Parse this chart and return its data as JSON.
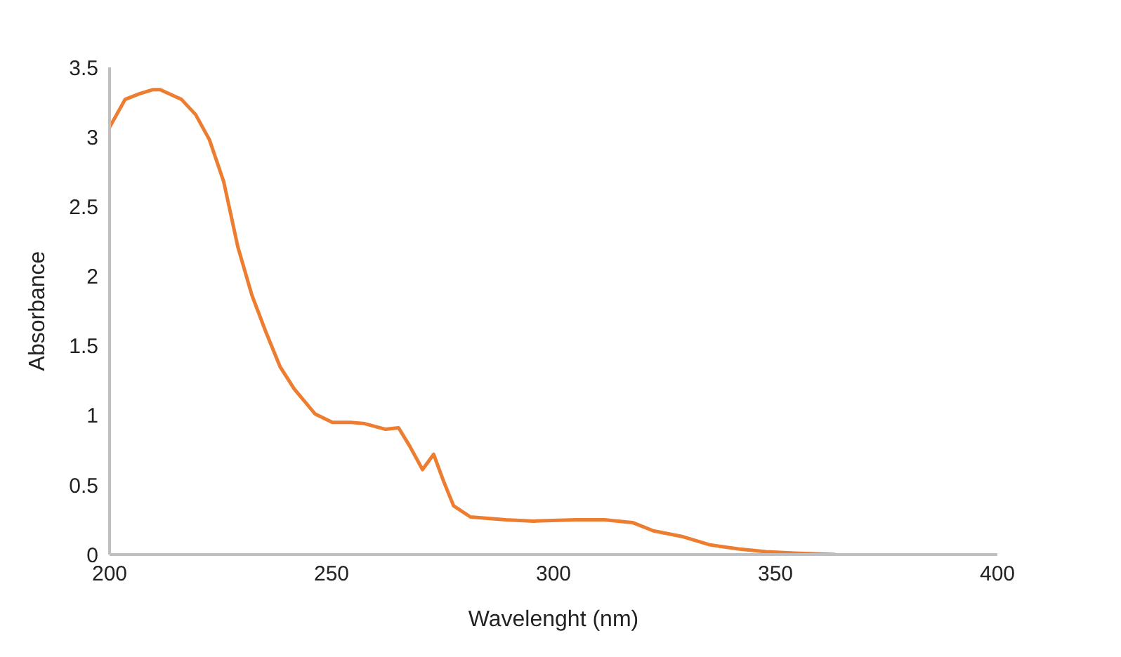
{
  "chart_data": {
    "type": "line",
    "xlabel": "Wavelenght (nm)",
    "ylabel": "Absorbance",
    "xlim": [
      200,
      400
    ],
    "xticks": [
      200,
      250,
      300,
      350,
      400
    ],
    "ylim": [
      0,
      3.5
    ],
    "yticks": [
      0,
      0.5,
      1,
      1.5,
      2,
      2.5,
      3,
      3.5
    ],
    "marker": "none",
    "line_style": "solid",
    "series": [
      {
        "color": "#ed7d31",
        "x": [
          200,
          203.5,
          206.7,
          209.8,
          211.4,
          216.2,
          219.4,
          222.5,
          225.7,
          228.9,
          232.1,
          235.2,
          238.4,
          241.6,
          246.3,
          250.2,
          254.3,
          257.5,
          262.2,
          265.1,
          267.6,
          270.5,
          273.0,
          275.2,
          277.5,
          281.3,
          289.2,
          295.6,
          305.1,
          311.4,
          317.8,
          322.5,
          328.9,
          335.2,
          341.6,
          347.9,
          354.3,
          363.5
        ],
        "values": [
          3.07,
          3.27,
          3.31,
          3.34,
          3.34,
          3.27,
          3.16,
          2.98,
          2.68,
          2.21,
          1.86,
          1.6,
          1.35,
          1.19,
          1.01,
          0.95,
          0.95,
          0.94,
          0.9,
          0.91,
          0.78,
          0.61,
          0.72,
          0.53,
          0.35,
          0.27,
          0.25,
          0.24,
          0.25,
          0.25,
          0.23,
          0.17,
          0.13,
          0.07,
          0.04,
          0.02,
          0.01,
          0
        ]
      }
    ]
  }
}
